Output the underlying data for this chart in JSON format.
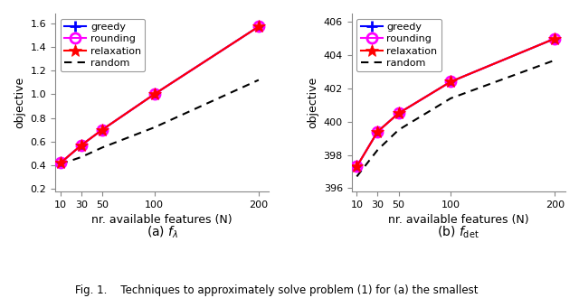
{
  "x": [
    10,
    30,
    50,
    100,
    200
  ],
  "left": {
    "greedy": [
      0.42,
      0.57,
      0.7,
      1.0,
      1.57
    ],
    "rounding": [
      0.42,
      0.57,
      0.7,
      1.0,
      1.57
    ],
    "relaxation": [
      0.42,
      0.57,
      0.7,
      1.0,
      1.57
    ],
    "random": [
      0.41,
      0.47,
      0.55,
      0.72,
      1.12
    ],
    "ylim": [
      0.18,
      1.68
    ],
    "yticks": [
      0.2,
      0.4,
      0.6,
      0.8,
      1.0,
      1.2,
      1.4,
      1.6
    ],
    "xlabel": "nr. available features (N)",
    "ylabel": "objective",
    "title": "(a) $f_{\\lambda}$"
  },
  "right": {
    "greedy": [
      397.3,
      399.4,
      400.5,
      402.4,
      405.0
    ],
    "rounding": [
      397.3,
      399.4,
      400.5,
      402.4,
      405.0
    ],
    "relaxation": [
      397.3,
      399.4,
      400.5,
      402.4,
      405.0
    ],
    "random": [
      396.7,
      398.3,
      399.5,
      401.4,
      403.7
    ],
    "ylim": [
      395.8,
      406.5
    ],
    "yticks": [
      396,
      398,
      400,
      402,
      404,
      406
    ],
    "xlabel": "nr. available features (N)",
    "ylabel": "objective",
    "title": "(b) $f_{\\mathrm{det}}$"
  },
  "greedy_color": "#0000ff",
  "rounding_color": "#ff00ff",
  "relaxation_color": "#ff0000",
  "random_color": "#000000",
  "xticks": [
    10,
    30,
    50,
    100,
    200
  ],
  "fig_caption": "Fig. 1.    Techniques to approximately solve problem (1) for (a) the smallest"
}
